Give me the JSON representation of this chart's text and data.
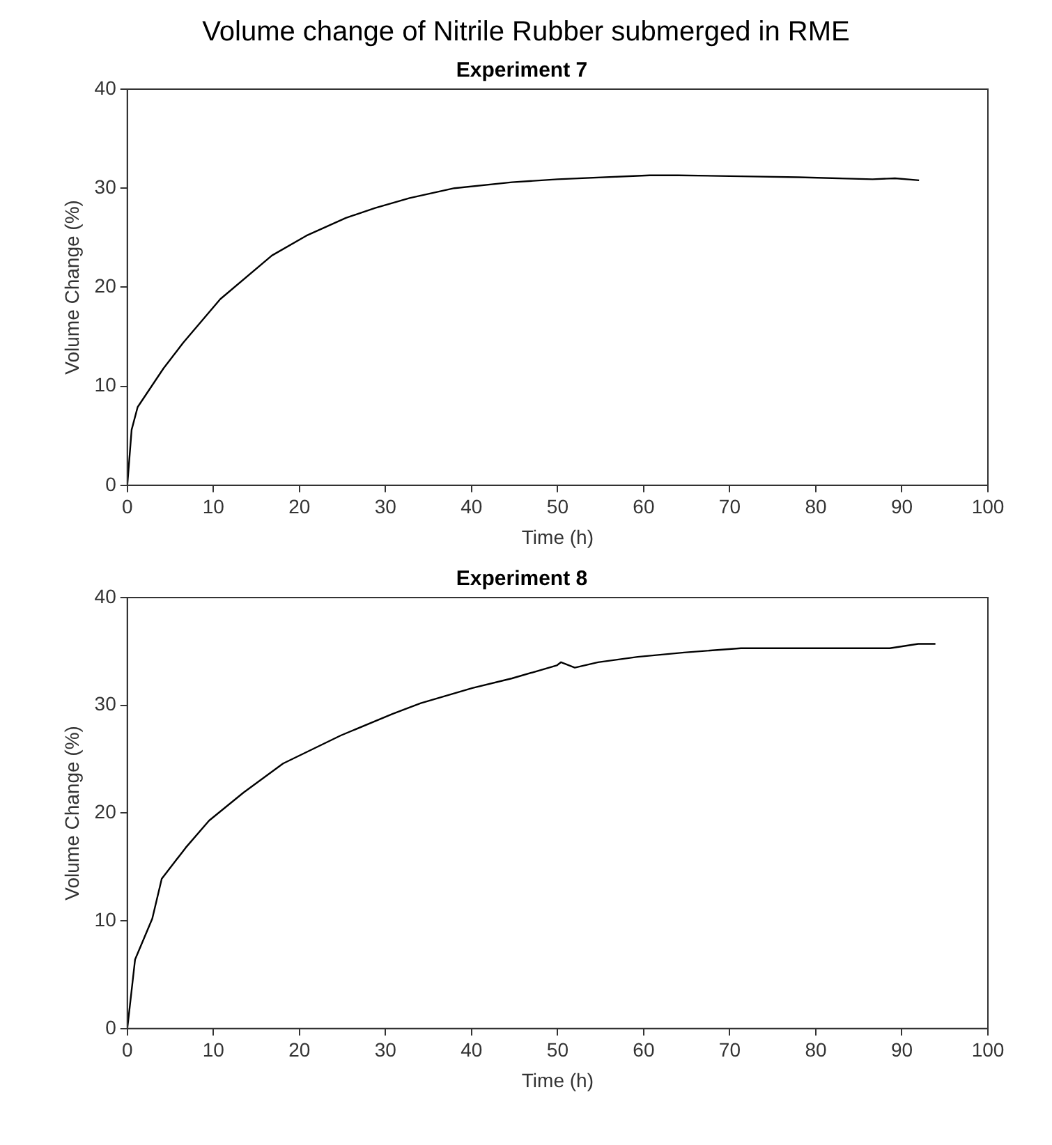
{
  "chart_data": [
    {
      "type": "line",
      "title": "Volume change of Nitrile Rubber submerged in RME",
      "subtitle": "Experiment 7",
      "xlabel": "Time (h)",
      "ylabel": "Volume Change (%)",
      "xlim": [
        0,
        100
      ],
      "xticks": [
        0,
        10,
        20,
        30,
        40,
        50,
        60,
        70,
        80,
        90,
        100
      ],
      "ylim": [
        0,
        40
      ],
      "yticks": [
        0,
        10,
        20,
        30,
        40
      ],
      "grid": false,
      "legend": false,
      "marker": "none",
      "line_style": "solid",
      "series": [
        {
          "color": "#000000",
          "x": [
            0,
            0.5,
            1.2,
            4.2,
            6.5,
            10.8,
            16.8,
            20.8,
            25.4,
            28.8,
            32.8,
            38,
            44.7,
            50,
            60.7,
            64,
            71.3,
            78,
            86.6,
            89.2,
            92
          ],
          "values": [
            0,
            5.6,
            7.9,
            11.8,
            14.4,
            18.8,
            23.2,
            25.2,
            27.0,
            28.0,
            29.0,
            30.0,
            30.6,
            30.9,
            31.3,
            31.3,
            31.2,
            31.1,
            30.9,
            31.0,
            30.8
          ]
        }
      ]
    },
    {
      "type": "line",
      "title": "Experiment 8",
      "xlabel": "Time (h)",
      "ylabel": "Volume Change (%)",
      "xlim": [
        0,
        100
      ],
      "xticks": [
        0,
        10,
        20,
        30,
        40,
        50,
        60,
        70,
        80,
        90,
        100
      ],
      "ylim": [
        0,
        40
      ],
      "yticks": [
        0,
        10,
        20,
        30,
        40
      ],
      "grid": false,
      "legend": false,
      "marker": "none",
      "line_style": "solid",
      "series": [
        {
          "color": "#000000",
          "x": [
            0,
            0.9,
            2.9,
            4.0,
            6.8,
            9.5,
            13.5,
            18.1,
            24.8,
            30.8,
            34.1,
            40.1,
            44.7,
            49.9,
            50.4,
            52,
            54.7,
            59.3,
            64.7,
            71.3,
            81.3,
            88.6,
            91.9,
            93.9
          ],
          "values": [
            0,
            6.4,
            10.2,
            13.9,
            16.8,
            19.3,
            21.9,
            24.6,
            27.2,
            29.2,
            30.2,
            31.6,
            32.5,
            33.7,
            34.0,
            33.5,
            34.0,
            34.5,
            34.9,
            35.3,
            35.3,
            35.3,
            35.7,
            35.7
          ]
        }
      ]
    }
  ]
}
